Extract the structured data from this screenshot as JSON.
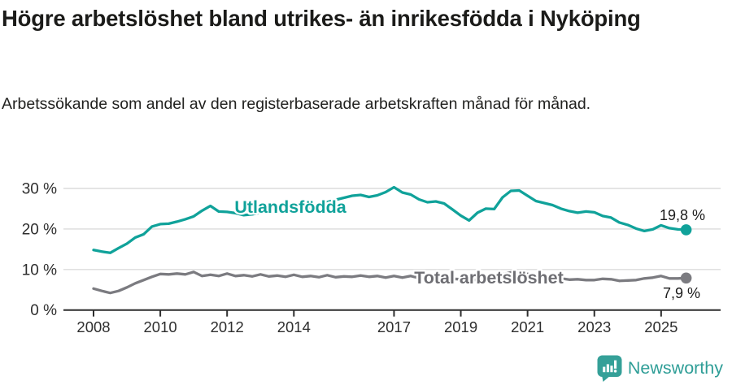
{
  "header": {
    "title": "Högre arbetslöshet bland utrikes- än inrikesfödda i Nyköping",
    "subtitle": "Arbetssökande som andel av den registerbaserade arbetskraften månad för månad."
  },
  "colors": {
    "accent_teal": "#10a29a",
    "series_gray": "#7b7b80",
    "label_gray": "#6e6e73",
    "grid_line": "#dcdcdc",
    "axis_line": "#2e2e2e",
    "axis_text": "#2e2e2e",
    "value_label_text": "#1c1c1c",
    "brand_teal": "#2f9e97"
  },
  "chart_data": {
    "type": "line",
    "title": "Högre arbetslöshet bland utrikes- än inrikesfödda i Nyköping",
    "subtitle": "Arbetssökande som andel av den registerbaserade arbetskraften månad för månad.",
    "unit": "%",
    "x_start": 2008.0,
    "x_step": 0.25,
    "xlim": [
      2008,
      2025.75
    ],
    "ylim": [
      0,
      30
    ],
    "grid": true,
    "y_ticks": [
      {
        "value": 0,
        "label": "0 %"
      },
      {
        "value": 10,
        "label": "10 %"
      },
      {
        "value": 20,
        "label": "20 %"
      },
      {
        "value": 30,
        "label": "30 %"
      }
    ],
    "x_ticks": [
      {
        "value": 2008,
        "label": "2008"
      },
      {
        "value": 2010,
        "label": "2010"
      },
      {
        "value": 2012,
        "label": "2012"
      },
      {
        "value": 2014,
        "label": "2014"
      },
      {
        "value": 2017,
        "label": "2017"
      },
      {
        "value": 2019,
        "label": "2019"
      },
      {
        "value": 2021,
        "label": "2021"
      },
      {
        "value": 2023,
        "label": "2023"
      },
      {
        "value": 2025,
        "label": "2025"
      }
    ],
    "series": [
      {
        "name": "Utlandsfödda",
        "color": "#10a29a",
        "end_label": "19,8 %",
        "end_value": 19.8,
        "values": [
          14.8,
          14.4,
          14.1,
          15.3,
          16.4,
          17.9,
          18.7,
          20.6,
          21.2,
          21.3,
          21.8,
          22.4,
          23.1,
          24.5,
          25.7,
          24.3,
          24.2,
          23.9,
          23.4,
          23.6,
          24.0,
          24.3,
          24.0,
          24.5,
          24.9,
          25.3,
          25.1,
          26.0,
          26.6,
          27.2,
          27.7,
          28.2,
          28.4,
          27.9,
          28.3,
          29.1,
          30.3,
          29.0,
          28.5,
          27.3,
          26.6,
          26.8,
          26.3,
          24.8,
          23.3,
          22.1,
          24.0,
          25.0,
          24.9,
          27.8,
          29.4,
          29.5,
          28.2,
          26.9,
          26.4,
          25.9,
          25.0,
          24.4,
          24.0,
          24.3,
          24.1,
          23.2,
          22.8,
          21.6,
          21.0,
          20.1,
          19.5,
          19.9,
          20.9,
          20.2,
          19.9,
          19.8
        ]
      },
      {
        "name": "Total arbetslöshet",
        "color": "#7b7b80",
        "end_label": "7,9 %",
        "end_value": 7.9,
        "values": [
          5.3,
          4.7,
          4.2,
          4.7,
          5.6,
          6.6,
          7.4,
          8.2,
          8.9,
          8.8,
          9.0,
          8.8,
          9.4,
          8.4,
          8.7,
          8.4,
          9.0,
          8.4,
          8.6,
          8.3,
          8.8,
          8.3,
          8.5,
          8.2,
          8.7,
          8.2,
          8.4,
          8.1,
          8.6,
          8.1,
          8.3,
          8.2,
          8.5,
          8.2,
          8.4,
          8.0,
          8.4,
          8.0,
          8.4,
          7.9,
          8.2,
          7.8,
          8.0,
          7.7,
          7.6,
          7.3,
          7.5,
          7.8,
          8.0,
          8.8,
          9.3,
          9.1,
          8.9,
          8.5,
          8.2,
          8.0,
          7.8,
          7.5,
          7.6,
          7.4,
          7.4,
          7.7,
          7.6,
          7.2,
          7.3,
          7.4,
          7.8,
          8.0,
          8.4,
          7.8,
          7.8,
          7.9
        ]
      }
    ],
    "legend_position": "inline-labels"
  },
  "footer": {
    "brand": "Newsworthy"
  }
}
